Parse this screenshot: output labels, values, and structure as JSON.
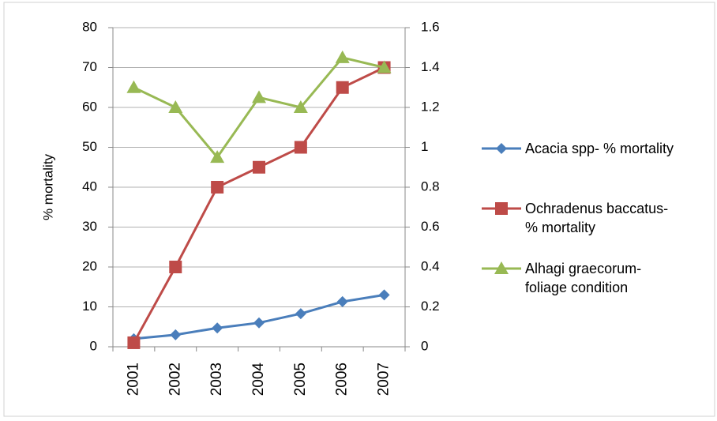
{
  "chart_data": {
    "type": "line",
    "y_label": "% mortality",
    "categories": [
      "2001",
      "2002",
      "2003",
      "2004",
      "2005",
      "2006",
      "2007"
    ],
    "series": [
      {
        "name": "Acacia spp- % mortality",
        "color": "#4a7ebb",
        "marker": "diamond",
        "values": [
          2,
          3,
          4.7,
          6,
          8.3,
          11.3,
          13
        ]
      },
      {
        "name": "Ochradenus baccatus- % mortality",
        "color": "#be4b48",
        "marker": "square",
        "values": [
          1,
          20,
          40,
          45,
          50,
          65,
          70
        ]
      },
      {
        "name": "Alhagi graecorum- foliage condition",
        "color": "#98b954",
        "marker": "triangle",
        "axis": "y2",
        "values": [
          1.3,
          1.2,
          0.95,
          1.25,
          1.2,
          1.45,
          1.4
        ]
      }
    ],
    "ylim": [
      0,
      80
    ],
    "yticks": [
      0,
      10,
      20,
      30,
      40,
      50,
      60,
      70,
      80
    ],
    "y2lim": [
      0,
      1.6
    ],
    "y2ticks": [
      0,
      0.2,
      0.4,
      0.6,
      0.8,
      1,
      1.2,
      1.4,
      1.6
    ],
    "grid": true,
    "legend": "right"
  }
}
